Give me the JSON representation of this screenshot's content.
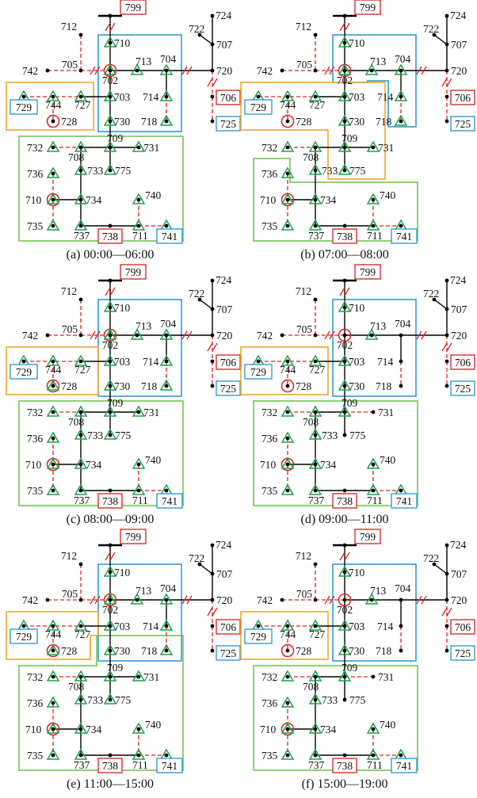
{
  "panels": [
    {
      "caption": "(a)  00:00—06:00"
    },
    {
      "caption": "(b)  07:00—08:00"
    },
    {
      "caption": "(c)  08:00—09:00"
    },
    {
      "caption": "(d)  09:00—11:00"
    },
    {
      "caption": "(e)  11:00—15:00"
    },
    {
      "caption": "(f)  15:00—19:00"
    }
  ],
  "nodes": {
    "n799": "799",
    "n724": "724",
    "n722": "722",
    "n707": "707",
    "n720": "720",
    "n712": "712",
    "n710a": "710",
    "n742": "742",
    "n705": "705",
    "n702": "702",
    "n713": "713",
    "n704": "704",
    "n729": "729",
    "n744": "744",
    "n727": "727",
    "n703": "703",
    "n714": "714",
    "n706": "706",
    "n728": "728",
    "n730": "730",
    "n718": "718",
    "n725": "725",
    "n732": "732",
    "n708": "708",
    "n709": "709",
    "n731": "731",
    "n733": "733",
    "n775": "775",
    "n736": "736",
    "n710b": "710",
    "n734": "734",
    "n740": "740",
    "n735": "735",
    "n737": "737",
    "n738": "738",
    "n711": "711",
    "n741": "741"
  },
  "colors": {
    "line": "#000000",
    "open_switch": "#e02020",
    "marker_tri": "#1aa34a",
    "marker_circle": "#e02020",
    "zone_blue": "#2196d3",
    "zone_orange": "#f0a020",
    "zone_green": "#6cc04a",
    "box_red": "#d42020",
    "box_blue": "#2196d3"
  }
}
